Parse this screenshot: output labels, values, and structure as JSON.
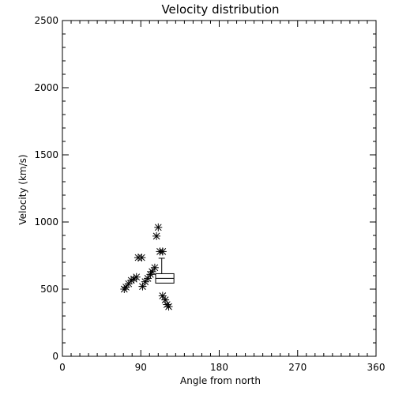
{
  "chart_data": {
    "type": "scatter",
    "title": "Velocity distribution",
    "xlabel": "Angle from north",
    "ylabel": "Velocity (km/s)",
    "xlim": [
      0,
      360
    ],
    "ylim": [
      0,
      2500
    ],
    "x_ticks": [
      0,
      90,
      180,
      270,
      360
    ],
    "y_ticks": [
      0,
      500,
      1000,
      1500,
      2000,
      2500
    ],
    "x_minor_step": 10,
    "y_minor_step": 100,
    "grid": false,
    "legend": "none",
    "marker": "asterisk",
    "color": "#000000",
    "points": [
      {
        "x": 71,
        "y": 500
      },
      {
        "x": 73,
        "y": 515
      },
      {
        "x": 76,
        "y": 540
      },
      {
        "x": 79,
        "y": 565
      },
      {
        "x": 82,
        "y": 575
      },
      {
        "x": 85,
        "y": 590
      },
      {
        "x": 87,
        "y": 735
      },
      {
        "x": 91,
        "y": 735
      },
      {
        "x": 92,
        "y": 520
      },
      {
        "x": 95,
        "y": 555
      },
      {
        "x": 98,
        "y": 580
      },
      {
        "x": 101,
        "y": 610
      },
      {
        "x": 103,
        "y": 630
      },
      {
        "x": 106,
        "y": 660
      },
      {
        "x": 108,
        "y": 895
      },
      {
        "x": 110,
        "y": 960
      },
      {
        "x": 112,
        "y": 780
      },
      {
        "x": 115,
        "y": 780
      },
      {
        "x": 115,
        "y": 450
      },
      {
        "x": 118,
        "y": 420
      },
      {
        "x": 120,
        "y": 385
      },
      {
        "x": 122,
        "y": 370
      }
    ],
    "boxplot": {
      "x_left": 107,
      "x_right": 128,
      "whisker_x": 114,
      "whisker_top": 730,
      "q3": 615,
      "median": 580,
      "q1": 545
    }
  }
}
